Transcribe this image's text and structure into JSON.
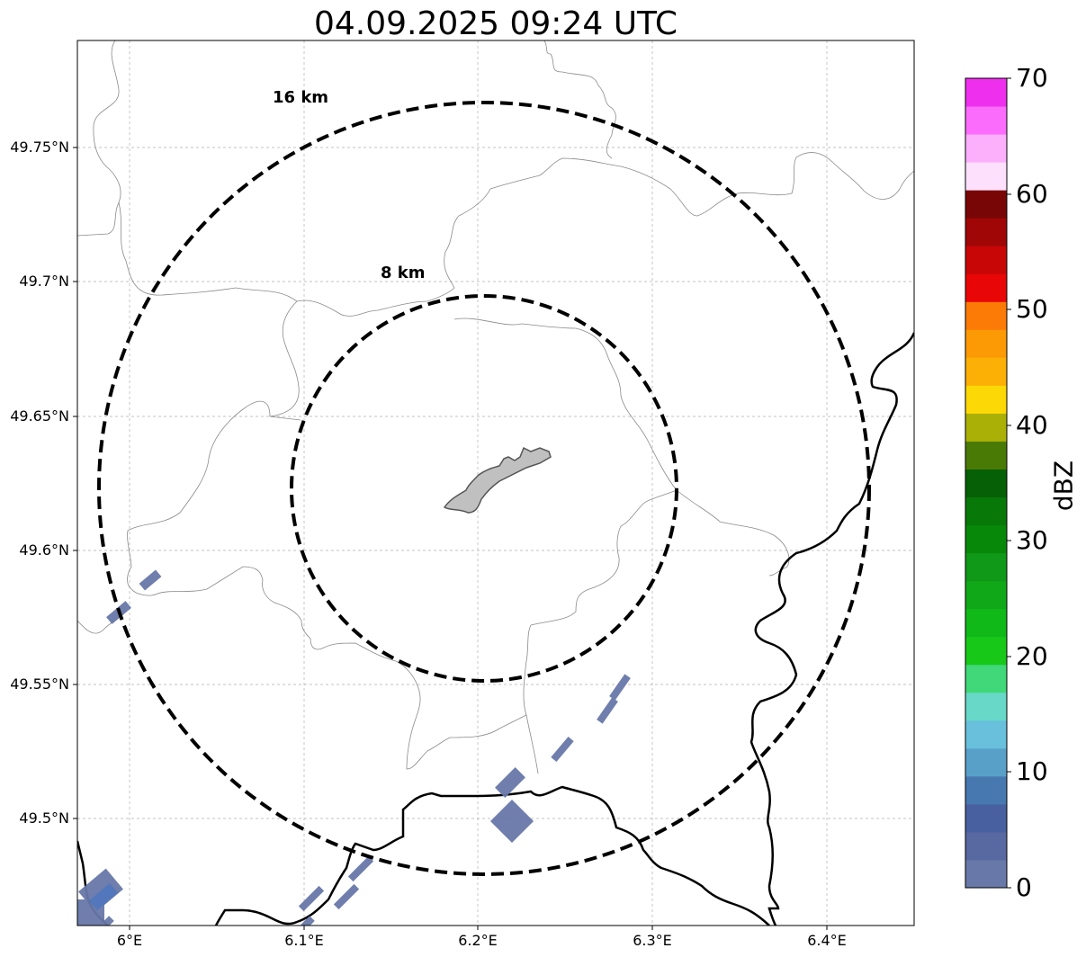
{
  "title": "04.09.2025 09:24 UTC",
  "rings": [
    {
      "label": "8 km",
      "radius_km": 8
    },
    {
      "label": "16 km",
      "radius_km": 16
    }
  ],
  "map": {
    "lon_range": [
      5.97,
      6.45
    ],
    "lat_range": [
      49.46,
      49.79
    ],
    "grid": true
  },
  "lat_ticks": [
    "49.75°N",
    "49.7°N",
    "49.65°N",
    "49.6°N",
    "49.55°N",
    "49.5°N"
  ],
  "lon_ticks": [
    "6°E",
    "6.1°E",
    "6.2°E",
    "6.3°E",
    "6.4°E"
  ],
  "colorbar": {
    "label": "dBZ",
    "min": 0,
    "max": 70,
    "ticks": [
      "0",
      "10",
      "20",
      "30",
      "40",
      "50",
      "60",
      "70"
    ],
    "colors": [
      "#6878a8",
      "#5868a0",
      "#4860a0",
      "#4878b0",
      "#58a0c8",
      "#68c0dc",
      "#68d8c8",
      "#40d878",
      "#18c818",
      "#10b818",
      "#10a818",
      "#109818",
      "#088808",
      "#087808",
      "#066006",
      "#4a7a06",
      "#aab006",
      "#fcd806",
      "#fcb006",
      "#fc9a06",
      "#fc7a06",
      "#e80606",
      "#c80606",
      "#a00606",
      "#780606",
      "#fce0fc",
      "#fcb0fc",
      "#fc6cfc",
      "#ee30ee"
    ]
  },
  "echo_color": "#6878a8",
  "city_fill": "#c0c0c0"
}
